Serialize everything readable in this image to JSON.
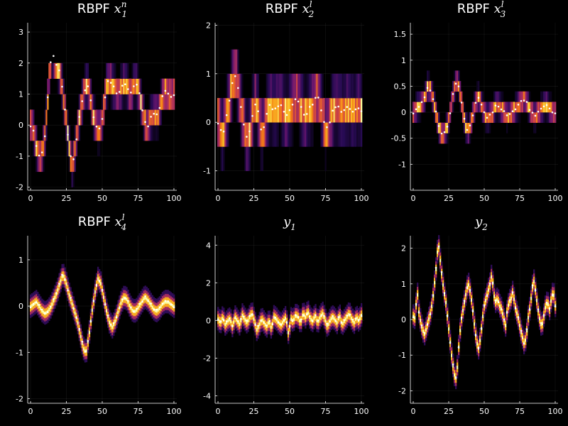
{
  "figure": {
    "background": "#000000",
    "colormap": "inferno",
    "marker_color": "#ffffff"
  },
  "chart_data": [
    {
      "type": "heatmap",
      "title_prefix": "RBPF ",
      "title_var": "x",
      "title_sup": "n",
      "title_sub": "1",
      "xlim": [
        -2,
        102
      ],
      "ylim": [
        -2.1,
        3.3
      ],
      "xticks": [
        0,
        25,
        50,
        75,
        100
      ],
      "yticks": [
        -2,
        -1,
        0,
        1,
        2,
        3
      ],
      "bins": [
        -2.0,
        -1.5,
        -1.0,
        -0.5,
        0.0,
        0.5,
        1.0,
        1.5,
        2.0
      ],
      "points": [
        0.0,
        0.0,
        -0.3,
        -0.6,
        -0.9,
        -1.05,
        -1.0,
        -0.7,
        -0.3,
        0.5,
        1.4,
        2.0,
        2.35,
        2.1,
        1.95,
        1.85,
        1.7,
        1.4,
        0.9,
        0.5,
        0.0,
        -0.5,
        -1.0,
        -1.3,
        -1.0,
        -0.6,
        0.0,
        0.3,
        0.6,
        0.9,
        1.15,
        1.3,
        1.2,
        0.9,
        0.5,
        0.2,
        0.0,
        -0.1,
        -0.1,
        0.0,
        0.4,
        0.9,
        1.3,
        1.45,
        1.4,
        1.3,
        1.2,
        1.1,
        1.0,
        1.1,
        1.2,
        1.3,
        1.35,
        1.25,
        1.1,
        1.0,
        1.15,
        1.3,
        1.35,
        1.2,
        1.0,
        0.7,
        0.4,
        0.1,
        -0.05,
        0.0,
        0.2,
        0.3,
        0.4,
        0.35,
        0.3,
        0.5,
        0.8,
        1.0,
        1.1,
        1.05,
        1.0,
        0.95,
        0.9,
        1.0
      ]
    },
    {
      "type": "heatmap",
      "title_prefix": "RBPF ",
      "title_var": "x",
      "title_sup": "l",
      "title_sub": "2",
      "xlim": [
        -2,
        102
      ],
      "ylim": [
        -1.4,
        2.05
      ],
      "xticks": [
        0,
        25,
        50,
        75,
        100
      ],
      "yticks": [
        -1,
        0,
        1,
        2
      ],
      "bins": [
        -1.0,
        -0.5,
        0.0,
        0.5,
        1.0,
        1.5
      ],
      "points": [
        0.0,
        -0.1,
        -0.25,
        -0.15,
        0.1,
        0.3,
        0.55,
        0.85,
        1.0,
        0.9,
        0.6,
        0.3,
        0.05,
        -0.2,
        -0.35,
        -0.25,
        0.0,
        0.25,
        0.4,
        0.3,
        0.0,
        -0.2,
        -0.1,
        0.1,
        0.25,
        0.35,
        0.3,
        0.25,
        0.3,
        0.35,
        0.4,
        0.3,
        0.2,
        0.15,
        0.2,
        0.3,
        0.4,
        0.45,
        0.5,
        0.4,
        0.3,
        0.2,
        0.15,
        0.2,
        0.3,
        0.35,
        0.4,
        0.5,
        0.55,
        0.4,
        0.2,
        0.0,
        -0.15,
        -0.1,
        0.05,
        0.2,
        0.3,
        0.35,
        0.3,
        0.25,
        0.2,
        0.25,
        0.3,
        0.3,
        0.25,
        0.2,
        0.25,
        0.3,
        0.3,
        0.25
      ]
    },
    {
      "type": "heatmap",
      "title_prefix": "RBPF ",
      "title_var": "x",
      "title_sup": "l",
      "title_sub": "3",
      "xlim": [
        -2,
        102
      ],
      "ylim": [
        -1.5,
        1.72
      ],
      "xticks": [
        0,
        25,
        50,
        75,
        100
      ],
      "yticks": [
        -1.0,
        -0.5,
        0.0,
        0.5,
        1.0,
        1.5
      ],
      "bins": [
        -1.0,
        -0.8,
        -0.6,
        -0.4,
        -0.2,
        0.0,
        0.2,
        0.4,
        0.6,
        0.8
      ],
      "points": [
        0.0,
        0.05,
        0.1,
        0.15,
        0.2,
        0.3,
        0.5,
        0.45,
        0.3,
        0.1,
        -0.15,
        -0.35,
        -0.45,
        -0.4,
        -0.3,
        -0.1,
        0.2,
        0.45,
        0.6,
        0.5,
        0.2,
        -0.1,
        -0.3,
        -0.35,
        -0.2,
        0.0,
        0.2,
        0.3,
        0.2,
        0.05,
        -0.05,
        -0.1,
        -0.05,
        0.0,
        0.1,
        0.15,
        0.1,
        0.05,
        0.0,
        -0.05,
        -0.05,
        0.0,
        0.05,
        0.1,
        0.15,
        0.2,
        0.25,
        0.2,
        0.1,
        0.0,
        -0.05,
        -0.05,
        0.0,
        0.05,
        0.1,
        0.15,
        0.1,
        0.05,
        0.0,
        0.0
      ]
    },
    {
      "type": "heatmap",
      "title_prefix": "RBPF ",
      "title_var": "x",
      "title_sup": "l",
      "title_sub": "4",
      "xlim": [
        -2,
        102
      ],
      "ylim": [
        -2.1,
        1.52
      ],
      "xticks": [
        0,
        25,
        50,
        75,
        100
      ],
      "yticks": [
        -2,
        -1,
        0,
        1
      ],
      "points": [
        0.0,
        0.05,
        0.1,
        0.0,
        -0.1,
        -0.15,
        -0.1,
        0.0,
        0.15,
        0.3,
        0.5,
        0.7,
        0.55,
        0.3,
        0.1,
        -0.1,
        -0.3,
        -0.6,
        -0.9,
        -1.0,
        -0.6,
        -0.1,
        0.3,
        0.6,
        0.5,
        0.2,
        -0.1,
        -0.35,
        -0.45,
        -0.3,
        -0.1,
        0.1,
        0.2,
        0.15,
        0.0,
        -0.1,
        -0.1,
        0.0,
        0.1,
        0.2,
        0.15,
        0.05,
        -0.05,
        -0.1,
        -0.05,
        0.05,
        0.1,
        0.1,
        0.05,
        0.0
      ]
    },
    {
      "type": "heatmap",
      "title_var": "y",
      "title_sub": "1",
      "xlim": [
        -2,
        102
      ],
      "ylim": [
        -4.4,
        4.5
      ],
      "xticks": [
        0,
        25,
        50,
        75,
        100
      ],
      "yticks": [
        -4,
        -2,
        0,
        2,
        4
      ],
      "points": [
        0.1,
        -0.1,
        0.2,
        -0.2,
        0.0,
        0.1,
        -0.3,
        0.2,
        0.0,
        -0.2,
        0.3,
        0.1,
        -0.1,
        0.2,
        0.4,
        0.0,
        -0.5,
        -0.2,
        0.1,
        -0.1,
        -0.3,
        0.0,
        -0.4,
        0.2,
        0.1,
        -0.1,
        -0.2,
        0.0,
        0.2,
        -0.7,
        0.1,
        0.0,
        0.3,
        0.2,
        -0.1,
        0.4,
        0.2,
        0.5,
        0.1,
        0.0,
        0.3,
        -0.1,
        0.2,
        0.4,
        0.1,
        -0.3,
        0.0,
        0.2,
        0.1,
        -0.1,
        0.3,
        -0.2,
        0.0,
        0.2,
        0.4,
        0.1,
        -0.1,
        0.2,
        0.0,
        0.3
      ]
    },
    {
      "type": "heatmap",
      "title_var": "y",
      "title_sub": "2",
      "xlim": [
        -2,
        102
      ],
      "ylim": [
        -2.35,
        2.35
      ],
      "xticks": [
        0,
        25,
        50,
        75,
        100
      ],
      "yticks": [
        -2,
        -1,
        0,
        1,
        2
      ],
      "points": [
        0.1,
        0.05,
        0.85,
        0.2,
        -0.1,
        -0.3,
        -0.4,
        -0.2,
        0.0,
        0.2,
        0.5,
        1.0,
        1.5,
        2.2,
        1.7,
        1.2,
        0.8,
        0.5,
        0.0,
        -0.5,
        -1.0,
        -1.4,
        -1.7,
        -1.3,
        -0.5,
        0.0,
        0.3,
        0.6,
        0.9,
        1.0,
        0.7,
        0.3,
        -0.2,
        -0.6,
        -0.8,
        -0.5,
        0.0,
        0.4,
        0.6,
        0.8,
        1.0,
        1.3,
        0.7,
        0.5,
        0.6,
        0.4,
        0.3,
        0.1,
        -0.2,
        0.3,
        0.5,
        0.6,
        0.8,
        0.4,
        0.2,
        0.0,
        -0.3,
        -0.5,
        -0.7,
        -0.4,
        0.1,
        0.4,
        0.9,
        1.1,
        0.7,
        0.3,
        0.0,
        -0.2,
        0.1,
        0.4,
        0.5,
        0.3,
        0.6,
        0.8,
        0.4
      ]
    }
  ]
}
